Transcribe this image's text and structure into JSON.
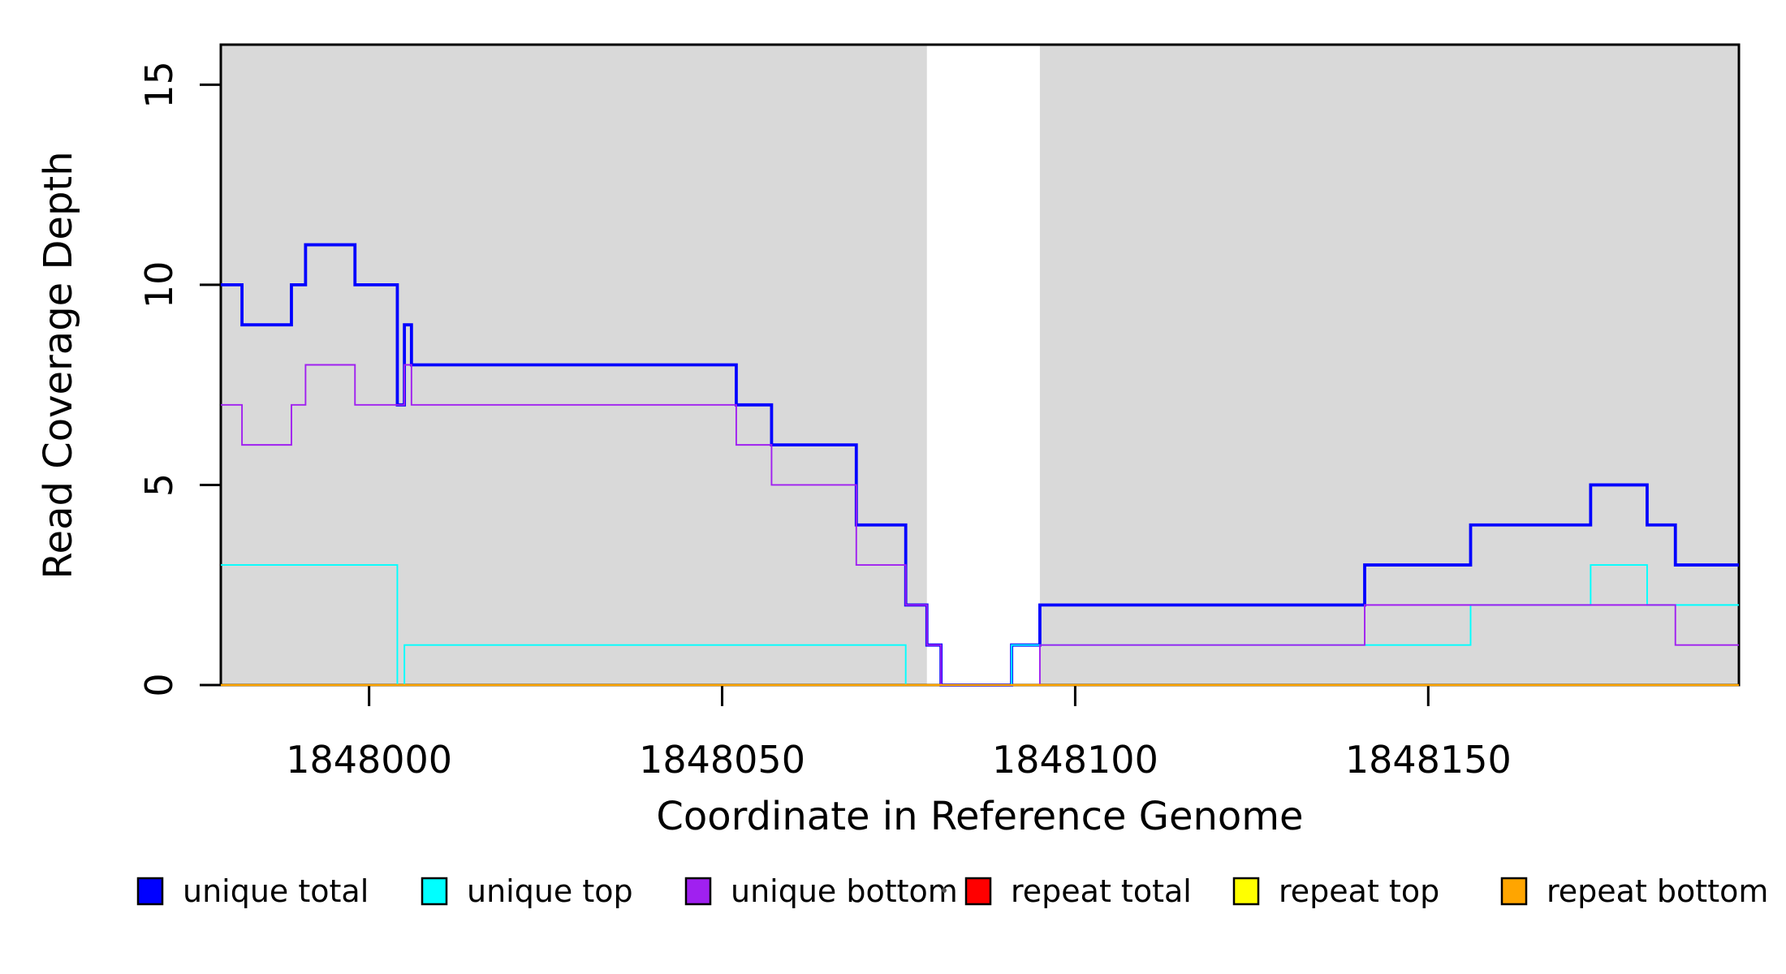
{
  "figure": {
    "xlabel": "Coordinate in Reference Genome",
    "ylabel": "Read Coverage Depth"
  },
  "chart_data": {
    "type": "line",
    "subtype": "step-coverage",
    "title": "",
    "xlabel": "Coordinate in Reference Genome",
    "ylabel": "Read Coverage Depth",
    "xlim": [
      1847979,
      1848194
    ],
    "ylim": [
      0,
      16
    ],
    "xticks": [
      1848000,
      1848050,
      1848100,
      1848150
    ],
    "yticks": [
      0,
      5,
      10,
      15
    ],
    "grid": false,
    "plot_background": "#ffffff",
    "shading": {
      "color": "#D9D9D9",
      "regions_x": [
        [
          1847979,
          1848079
        ],
        [
          1848095,
          1848194
        ]
      ]
    },
    "legend": {
      "position": "bottom-horizontal",
      "marker": "filled-square-black-border",
      "stray_dot": {
        "x": 1163,
        "y": 1097
      }
    },
    "series": [
      {
        "name": "unique total",
        "color": "#0000FF",
        "line_width": 3.8,
        "steps": [
          [
            1847979,
            10
          ],
          [
            1847982,
            9
          ],
          [
            1847989,
            10
          ],
          [
            1847991,
            11
          ],
          [
            1847998,
            10
          ],
          [
            1848004,
            7
          ],
          [
            1848005,
            9
          ],
          [
            1848006,
            8
          ],
          [
            1848052,
            7
          ],
          [
            1848057,
            6
          ],
          [
            1848069,
            4
          ],
          [
            1848076,
            2
          ],
          [
            1848079,
            1
          ],
          [
            1848081,
            0
          ],
          [
            1848091,
            1
          ],
          [
            1848095,
            2
          ],
          [
            1848141,
            3
          ],
          [
            1848156,
            4
          ],
          [
            1848173,
            5
          ],
          [
            1848181,
            4
          ],
          [
            1848185,
            3
          ]
        ]
      },
      {
        "name": "unique top",
        "color": "#00FFFF",
        "line_width": 1.9,
        "steps": [
          [
            1847979,
            3
          ],
          [
            1848004,
            0
          ],
          [
            1848005,
            1
          ],
          [
            1848076,
            0
          ],
          [
            1848091,
            1
          ],
          [
            1848156,
            2
          ],
          [
            1848173,
            3
          ],
          [
            1848181,
            2
          ]
        ]
      },
      {
        "name": "unique bottom",
        "color": "#A020F0",
        "line_width": 1.9,
        "steps": [
          [
            1847979,
            7
          ],
          [
            1847982,
            6
          ],
          [
            1847989,
            7
          ],
          [
            1847991,
            8
          ],
          [
            1847998,
            7
          ],
          [
            1848005,
            8
          ],
          [
            1848006,
            7
          ],
          [
            1848052,
            6
          ],
          [
            1848057,
            5
          ],
          [
            1848069,
            3
          ],
          [
            1848076,
            2
          ],
          [
            1848079,
            1
          ],
          [
            1848081,
            0
          ],
          [
            1848095,
            1
          ],
          [
            1848141,
            2
          ],
          [
            1848185,
            1
          ]
        ]
      },
      {
        "name": "repeat total",
        "color": "#FF0000",
        "line_width": 1.9,
        "steps": [
          [
            1847979,
            0
          ]
        ]
      },
      {
        "name": "repeat top",
        "color": "#FFFF00",
        "line_width": 1.9,
        "steps": [
          [
            1847979,
            0
          ]
        ]
      },
      {
        "name": "repeat bottom",
        "color": "#FFA500",
        "line_width": 2.4,
        "steps": [
          [
            1847979,
            0
          ]
        ]
      }
    ]
  }
}
